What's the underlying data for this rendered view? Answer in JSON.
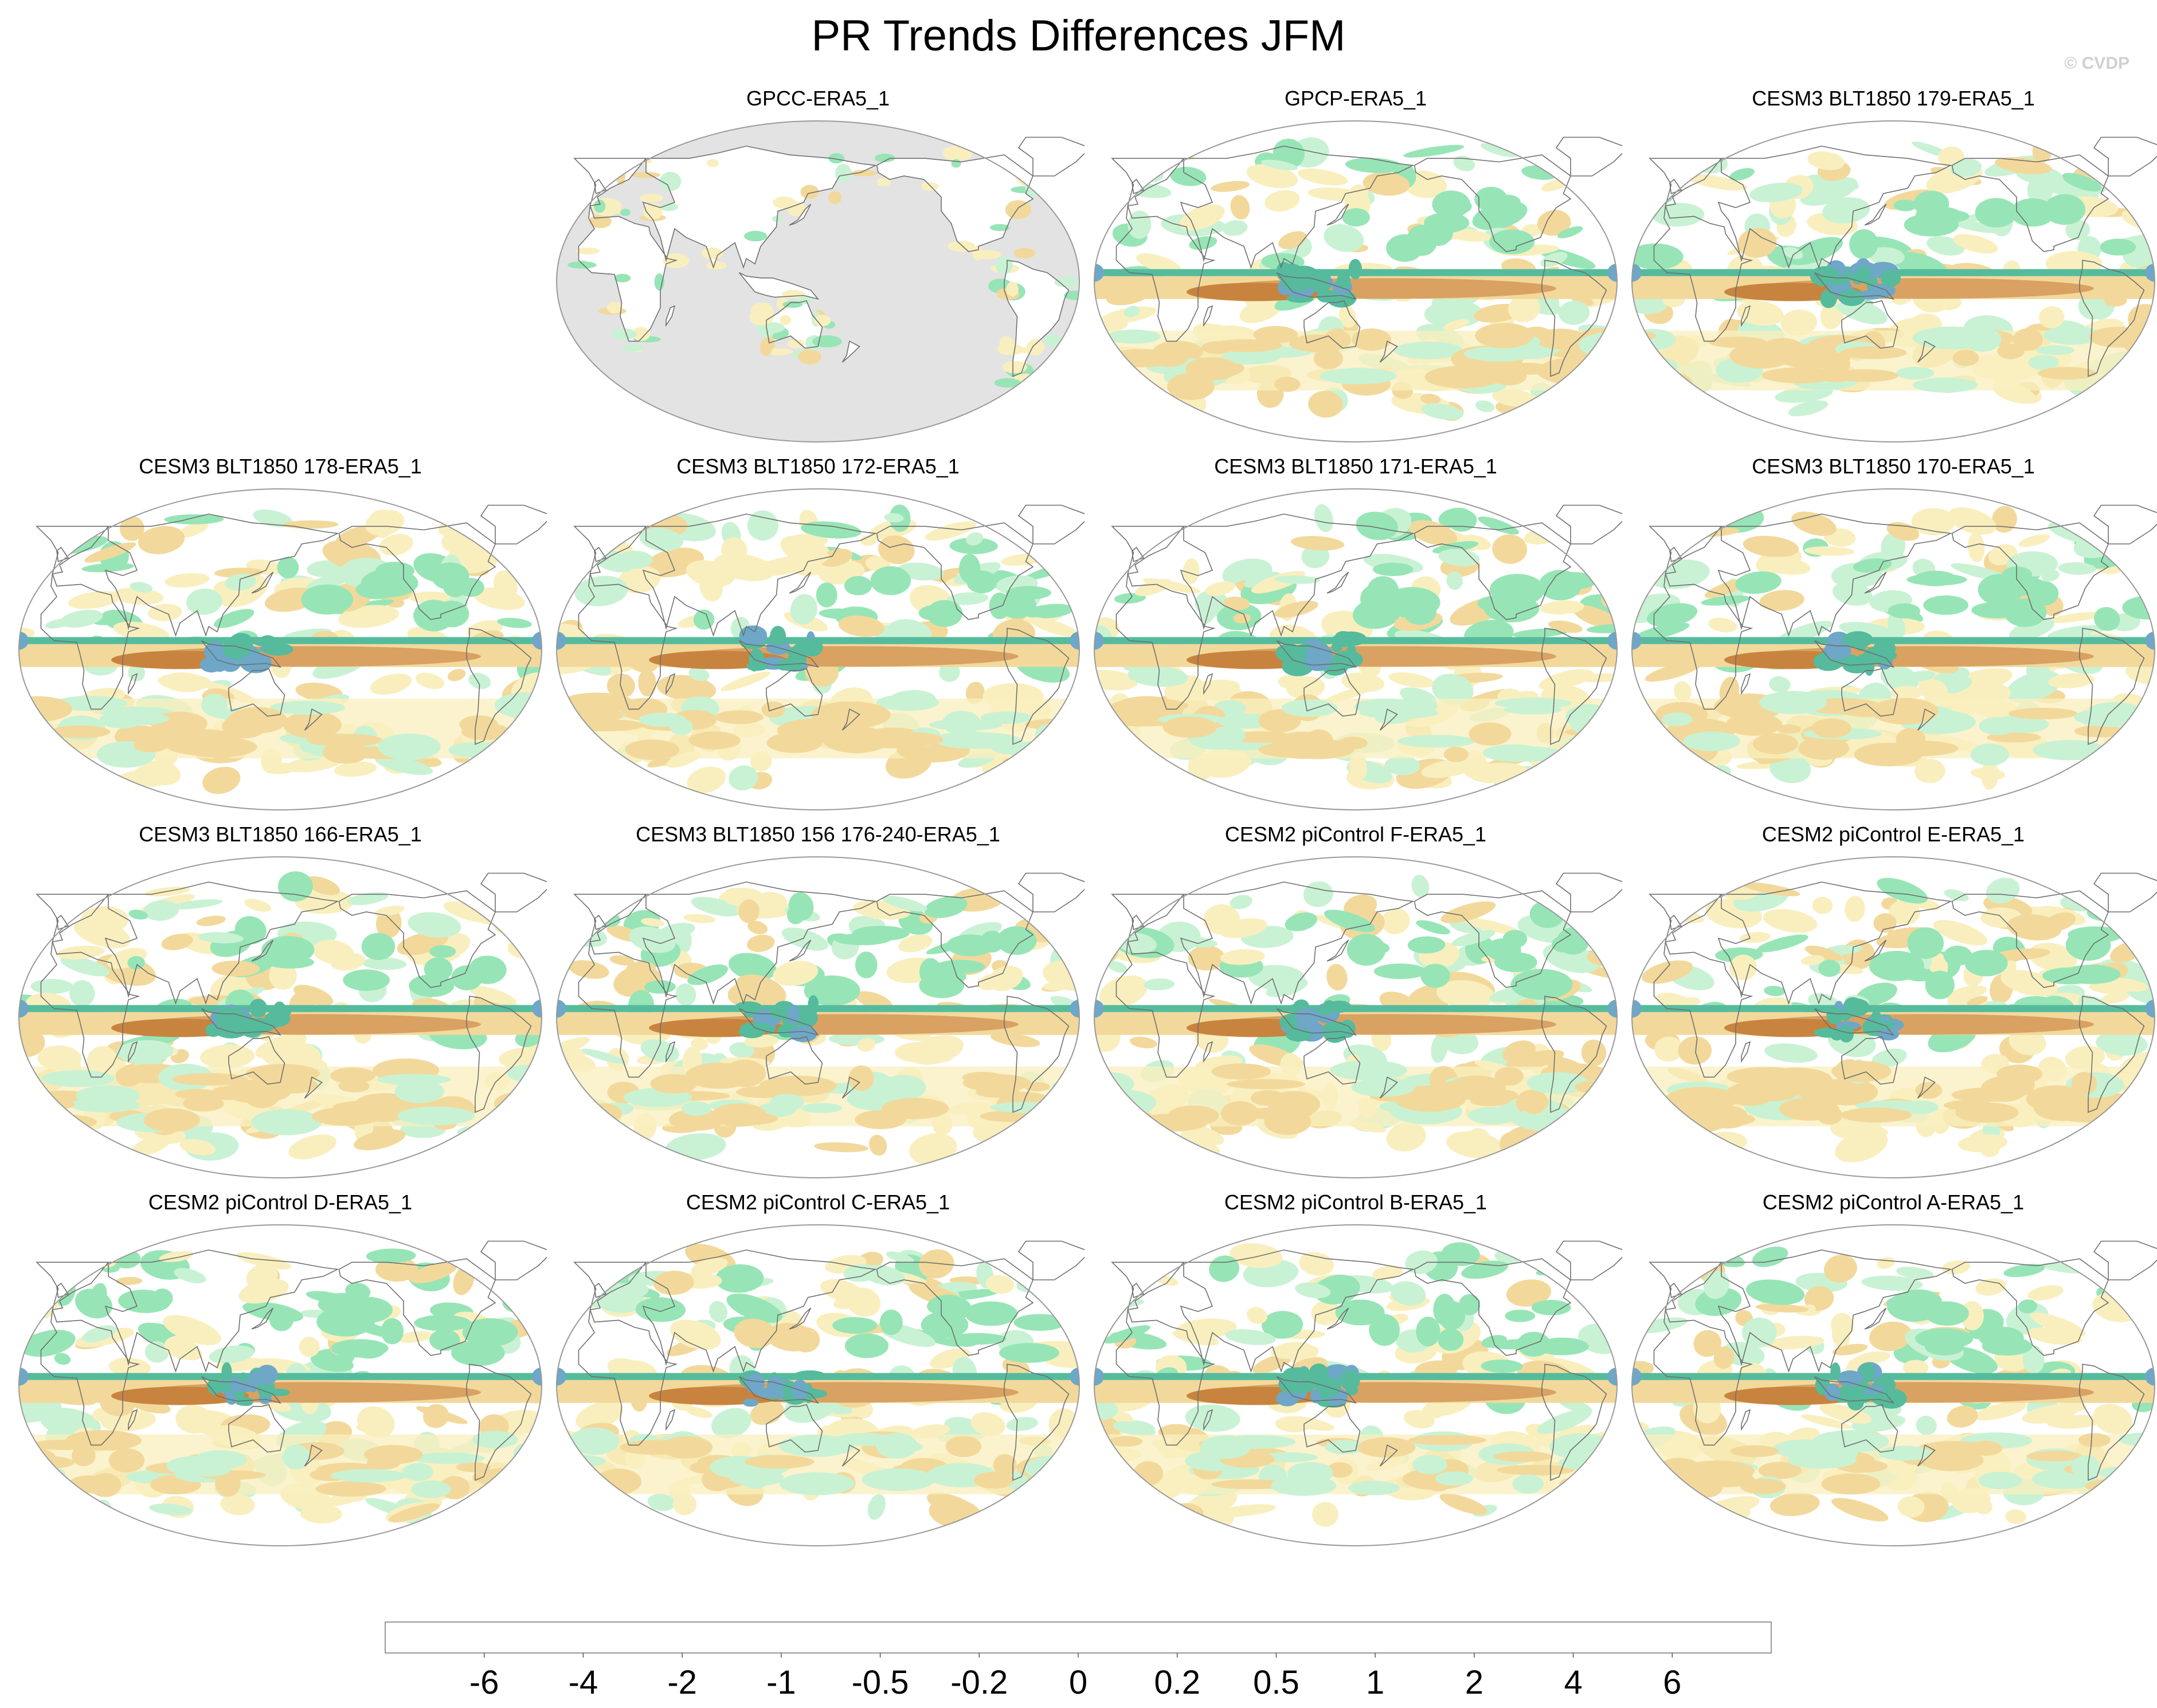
{
  "title": "PR Trends Differences JFM",
  "copyright": "© CVDP",
  "chart_data": {
    "type": "heatmap",
    "title": "PR Trends Differences JFM",
    "projection": "Robinson (Pacific-centered) global maps",
    "panels": [
      {
        "label": "GPCC-ERA5_1",
        "coverage": "land-only",
        "ocean_fill": "missing"
      },
      {
        "label": "GPCP-ERA5_1",
        "coverage": "global"
      },
      {
        "label": "CESM3 BLT1850 179-ERA5_1",
        "coverage": "global"
      },
      {
        "label": "CESM3 BLT1850 178-ERA5_1",
        "coverage": "global"
      },
      {
        "label": "CESM3 BLT1850 172-ERA5_1",
        "coverage": "global"
      },
      {
        "label": "CESM3 BLT1850 171-ERA5_1",
        "coverage": "global"
      },
      {
        "label": "CESM3 BLT1850 170-ERA5_1",
        "coverage": "global"
      },
      {
        "label": "CESM3 BLT1850 166-ERA5_1",
        "coverage": "global"
      },
      {
        "label": "CESM3 BLT1850 156 176-240-ERA5_1",
        "coverage": "global"
      },
      {
        "label": "CESM2 piControl F-ERA5_1",
        "coverage": "global"
      },
      {
        "label": "CESM2 piControl E-ERA5_1",
        "coverage": "global"
      },
      {
        "label": "CESM2 piControl D-ERA5_1",
        "coverage": "global"
      },
      {
        "label": "CESM2 piControl C-ERA5_1",
        "coverage": "global"
      },
      {
        "label": "CESM2 piControl B-ERA5_1",
        "coverage": "global"
      },
      {
        "label": "CESM2 piControl A-ERA5_1",
        "coverage": "global"
      }
    ],
    "colorbar": {
      "levels": [
        -6,
        -4,
        -2,
        -1,
        -0.5,
        -0.2,
        0,
        0.2,
        0.5,
        1,
        2,
        4,
        6
      ],
      "tick_labels": [
        "-6",
        "-4",
        "-2",
        "-1",
        "-0.5",
        "-0.2",
        "0",
        "0.2",
        "0.5",
        "1",
        "2",
        "4",
        "6"
      ],
      "colors": [
        "#b06a2c",
        "#c8843f",
        "#d9a262",
        "#ecc47f",
        "#f2d99b",
        "#f9efbe",
        "#ffffff",
        "#ffffff",
        "#c9f2d4",
        "#97e5b6",
        "#55bb9c",
        "#6ea7c7",
        "#0f6aa6",
        "#083a58"
      ]
    }
  },
  "colors": {
    "missing": "#e3e3e3",
    "coast": "#6f6f6f",
    "frame": "#9a9a9a"
  }
}
